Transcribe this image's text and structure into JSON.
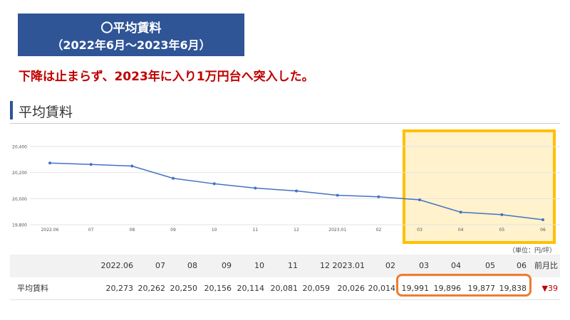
{
  "title": {
    "line1": "〇平均賃料",
    "line2": "（2022年6月～2023年6月）"
  },
  "headline": "下降は止まらず、2023年に入り1万円台へ突入した。",
  "section_title": "平均賃料",
  "unit_note": "（単位：円/坪）",
  "colors": {
    "title_bg": "#2f5597",
    "headline": "#c00000",
    "line": "#4472c4",
    "highlight_fill": "#fff2cc",
    "highlight_border": "#ffc000",
    "table_highlight_border": "#ed7d31",
    "decrease": "#c00000"
  },
  "chart_data": {
    "type": "line",
    "categories": [
      "2022.06",
      "07",
      "08",
      "09",
      "10",
      "11",
      "12",
      "2023.01",
      "02",
      "03",
      "04",
      "05",
      "06"
    ],
    "series": [
      {
        "values": [
          20273,
          20262,
          20250,
          20156,
          20114,
          20081,
          20059,
          20026,
          20014,
          19991,
          19896,
          19877,
          19838
        ]
      }
    ],
    "yticks": [
      "19,800",
      "20,000",
      "20,200",
      "20,400"
    ],
    "ylim": [
      19800,
      20400
    ],
    "grid": true,
    "highlight_range": [
      "03",
      "06"
    ]
  },
  "table": {
    "headers": [
      "2022.06",
      "07",
      "08",
      "09",
      "10",
      "11",
      "12",
      "2023.01",
      "02",
      "03",
      "04",
      "05",
      "06",
      "前月比"
    ],
    "row_label": "平均賃料",
    "values": [
      "20,273",
      "20,262",
      "20,250",
      "20,156",
      "20,114",
      "20,081",
      "20,059",
      "20,026",
      "20,014",
      "19,991",
      "19,896",
      "19,877",
      "19,838"
    ],
    "change": "▼39"
  }
}
